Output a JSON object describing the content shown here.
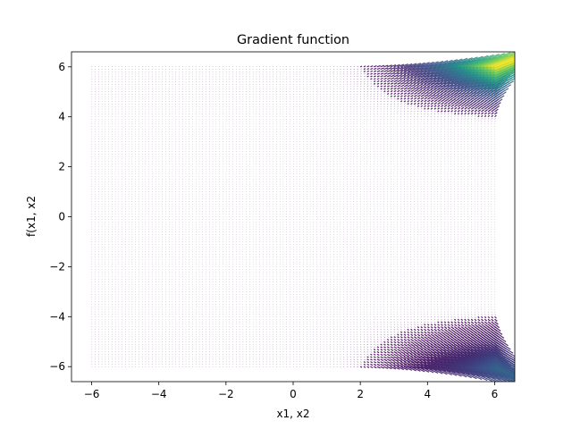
{
  "chart_data": {
    "type": "quiver",
    "title": "Gradient function",
    "xlabel": "x1, x2",
    "ylabel": "f(x1, x2",
    "xlim": [
      -6.6,
      6.6
    ],
    "ylim": [
      -6.6,
      6.6
    ],
    "xticks": [
      -6,
      -4,
      -2,
      0,
      2,
      4,
      6
    ],
    "yticks": [
      -6,
      -4,
      -2,
      0,
      2,
      4,
      6
    ],
    "xtick_labels": [
      "−6",
      "−4",
      "−2",
      "0",
      "2",
      "4",
      "6"
    ],
    "ytick_labels": [
      "−6",
      "−4",
      "−2",
      "0",
      "2",
      "4",
      "6"
    ],
    "grid": false,
    "colormap": "viridis",
    "grid_range": [
      -6,
      6
    ],
    "grid_points_per_axis": 121,
    "field": {
      "description": "gradient magnitude concentrated in top-right and bottom-right corners",
      "hot_regions": [
        {
          "corner": "top-right",
          "direction_deg": 20
        },
        {
          "corner": "bottom-right",
          "direction_deg": -25
        }
      ]
    }
  },
  "colors": {
    "background": "#ffffff",
    "axes": "#000000",
    "low": "#440154",
    "mid": "#21918c",
    "high": "#fde725"
  }
}
